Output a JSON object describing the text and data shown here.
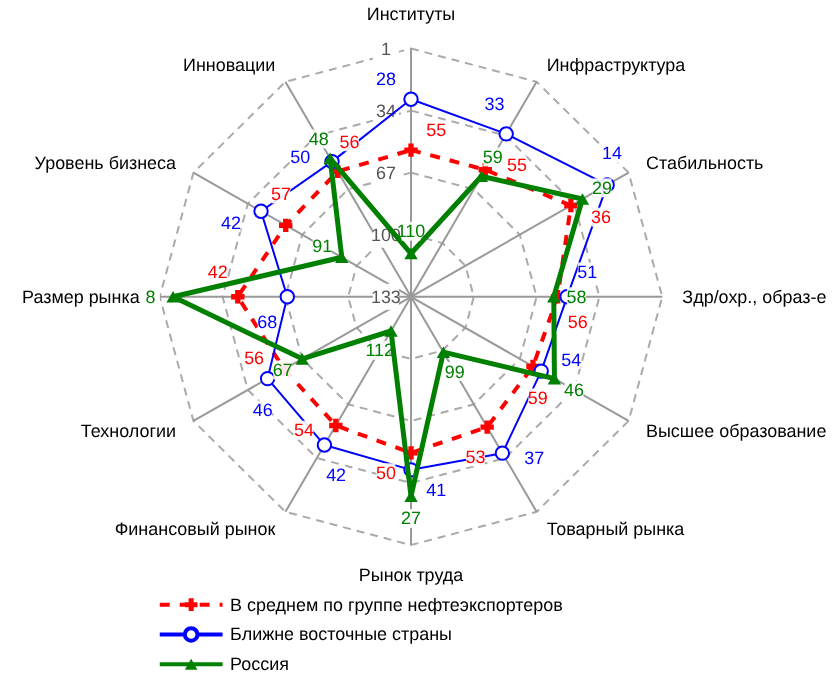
{
  "chart_data": {
    "type": "radar",
    "categories": [
      "Институты",
      "Инфраструктура",
      "Стабильность",
      "Здр/охр., образ-е",
      "Высшее образование",
      "Товарный рынка",
      "Рынок труда",
      "Финансовый рынок",
      "Технологии",
      "Размер рынка",
      "Уровень бизнеса",
      "Инновации"
    ],
    "ylim": [
      133,
      1
    ],
    "yticks": [
      1,
      34,
      67,
      100,
      133
    ],
    "grid": true,
    "legend": "bottom",
    "data_labels": true,
    "series": [
      {
        "name": "В среднем по группе нефтеэкспортеров",
        "color": "#ff0000",
        "marker": "cross",
        "line_style": "dashed",
        "values": [
          55,
          55,
          36,
          56,
          59,
          53,
          50,
          54,
          56,
          42,
          57,
          56
        ]
      },
      {
        "name": "Ближне восточные страны",
        "color": "#0000ff",
        "marker": "circle",
        "line_style": "solid",
        "values": [
          28,
          33,
          14,
          51,
          54,
          37,
          41,
          42,
          46,
          68,
          42,
          50
        ]
      },
      {
        "name": "Россия",
        "color": "#008000",
        "marker": "triangle",
        "line_style": "solid",
        "values": [
          110,
          59,
          29,
          58,
          46,
          99,
          27,
          112,
          67,
          8,
          91,
          48
        ]
      }
    ]
  }
}
